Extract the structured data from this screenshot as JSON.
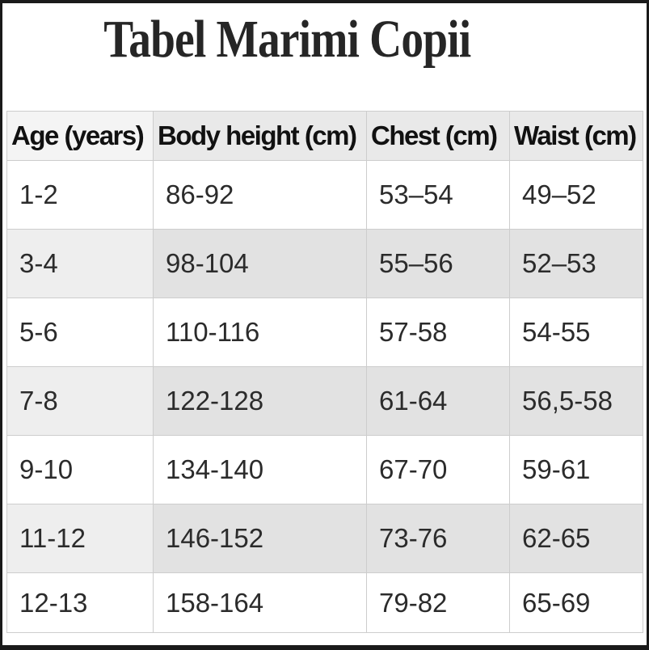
{
  "title": "Tabel Marimi Copii",
  "chart_data": {
    "type": "table",
    "title": "Tabel Marimi Copii",
    "columns": [
      "Age (years)",
      "Body height (cm)",
      "Chest (cm)",
      "Waist (cm)"
    ],
    "rows": [
      [
        "1-2",
        "86-92",
        "53–54",
        "49–52"
      ],
      [
        "3-4",
        "98-104",
        "55–56",
        "52–53"
      ],
      [
        "5-6",
        "110-116",
        "57-58",
        "54-55"
      ],
      [
        "7-8",
        "122-128",
        "61-64",
        "56,5-58"
      ],
      [
        "9-10",
        "134-140",
        "67-70",
        "59-61"
      ],
      [
        "11-12",
        "146-152",
        "73-76",
        "62-65"
      ],
      [
        "12-13",
        "158-164",
        "79-82",
        "65-69"
      ]
    ],
    "layout_hints": {
      "striped_rows": "even data rows shaded gray",
      "header_shaded": true,
      "grid": true
    }
  },
  "colors": {
    "frame": "#1a1a1a",
    "page_bg": "#ffffff",
    "header_bg": "#e9e9e9",
    "alt_row_bg": "#e2e2e2",
    "cell_border": "#cdcdcd",
    "text": "#2b2b2b"
  }
}
